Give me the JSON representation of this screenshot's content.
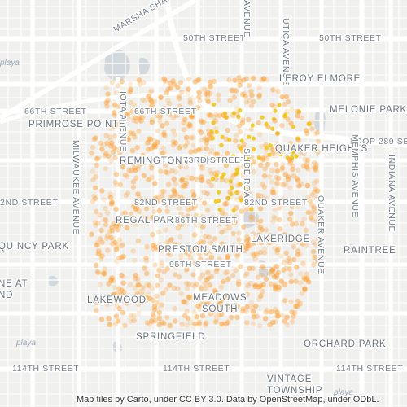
{
  "map": {
    "labels": {
      "marsha_sharp": "MARSHA SHARP",
      "fiftieth_west": "50TH STREET",
      "fiftieth_east": "50TH STREET",
      "avenue_top": "AVENUE",
      "utica": "UTICA AVENUE",
      "leroy_elmore": "LEROY ELMORE",
      "melonie_park": "MELONIE PARK",
      "sixty_sixth": "66TH STREET",
      "iota": "IOTA AVENUE",
      "sixty_sixth_mid": "66TH STREET",
      "primrose_pointe": "PRIMROSE POINTE",
      "loop_289": "LOOP 289 SE",
      "quaker_heights": "QUAKER HEIGHTS",
      "remington_park": "REMINGTON PARK",
      "seventy_third": "73RD STREET",
      "slide_road": "SLIDE ROAD",
      "milwaukee": "MILWAUKEE AVENUE",
      "eighty_second_west": "2ND STREET",
      "eighty_second_mid": "82ND STREET",
      "eighty_second_east": "82ND STREET",
      "memphis": "MEMPHIS AVENUE",
      "indiana": "INDIANA AVENUE",
      "quaker_avenue": "QUAKER AVENUE",
      "regal_park": "REGAL PARK",
      "eighty_sixth": "86TH STREET",
      "lakeridge": "LAKERIDGE",
      "quincy_park": "QUINCY PARK",
      "raintree": "RAINTREE",
      "preston_smith": "PRESTON SMITH",
      "ninety_fifth": "95TH STREET",
      "ne_at": "NE AT",
      "nd": "ND",
      "lakewood": "LAKEWOOD",
      "meadows": "MEADOWS",
      "south": "SOUTH",
      "springfield": "SPRINGFIELD",
      "orchard_park": "ORCHARD PARK",
      "one_fourteenth_west": "114TH STREET",
      "one_fourteenth_mid": "114TH STREET",
      "one_fourteenth_east": "114TH STREET",
      "vintage": "VINTAGE",
      "township": "TOWNSHIP"
    },
    "logos": [
      "playa",
      "playa",
      "playa"
    ],
    "attribution": "Map tiles by Carto, under CC BY 3.0. Data by OpenStreetMap, under ODbL."
  }
}
